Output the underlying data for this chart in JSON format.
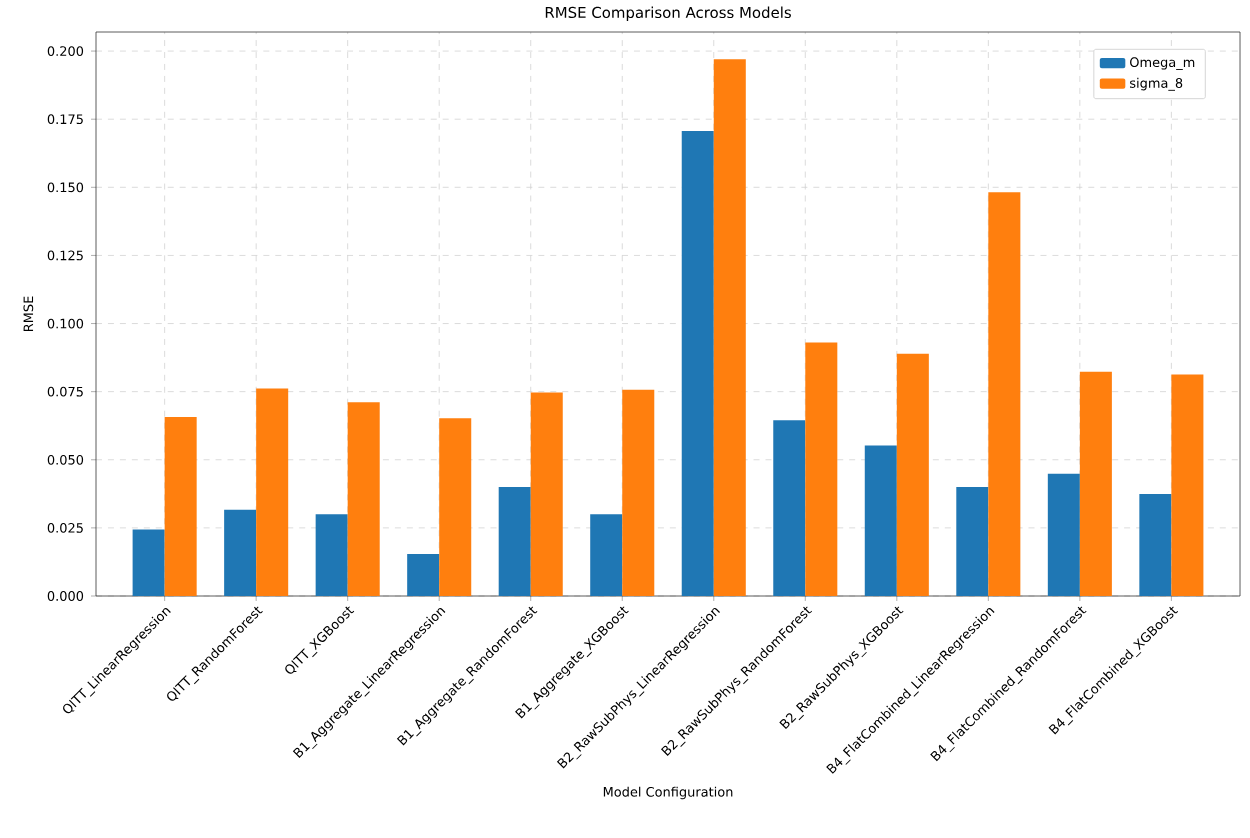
{
  "chart_data": {
    "type": "bar",
    "title": "RMSE Comparison Across Models",
    "xlabel": "Model Configuration",
    "ylabel": "RMSE",
    "categories": [
      "QITT_LinearRegression",
      "QITT_RandomForest",
      "QITT_XGBoost",
      "B1_Aggregate_LinearRegression",
      "B1_Aggregate_RandomForest",
      "B1_Aggregate_XGBoost",
      "B2_RawSubPhys_LinearRegression",
      "B2_RawSubPhys_RandomForest",
      "B2_RawSubPhys_XGBoost",
      "B4_FlatCombined_LinearRegression",
      "B4_FlatCombined_RandomForest",
      "B4_FlatCombined_XGBoost"
    ],
    "series": [
      {
        "name": "Omega_m",
        "color": "#1f77b4",
        "values": [
          0.0244,
          0.0317,
          0.03,
          0.0154,
          0.04,
          0.03,
          0.1707,
          0.0645,
          0.0552,
          0.04,
          0.0449,
          0.0374
        ]
      },
      {
        "name": "sigma_8",
        "color": "#ff7f0e",
        "values": [
          0.0657,
          0.0762,
          0.0711,
          0.0652,
          0.0747,
          0.0757,
          0.197,
          0.093,
          0.0889,
          0.1482,
          0.0823,
          0.0813
        ]
      }
    ],
    "ylim": [
      0,
      0.207
    ],
    "yticks": [
      {
        "value": 0,
        "label": "0.000"
      },
      {
        "value": 0.025,
        "label": "0.025"
      },
      {
        "value": 0.05,
        "label": "0.050"
      },
      {
        "value": 0.075,
        "label": "0.075"
      },
      {
        "value": 0.1,
        "label": "0.100"
      },
      {
        "value": 0.125,
        "label": "0.125"
      },
      {
        "value": 0.15,
        "label": "0.150"
      },
      {
        "value": 0.175,
        "label": "0.175"
      },
      {
        "value": 0.2,
        "label": "0.200"
      }
    ],
    "grid": true,
    "legend": "top right"
  }
}
